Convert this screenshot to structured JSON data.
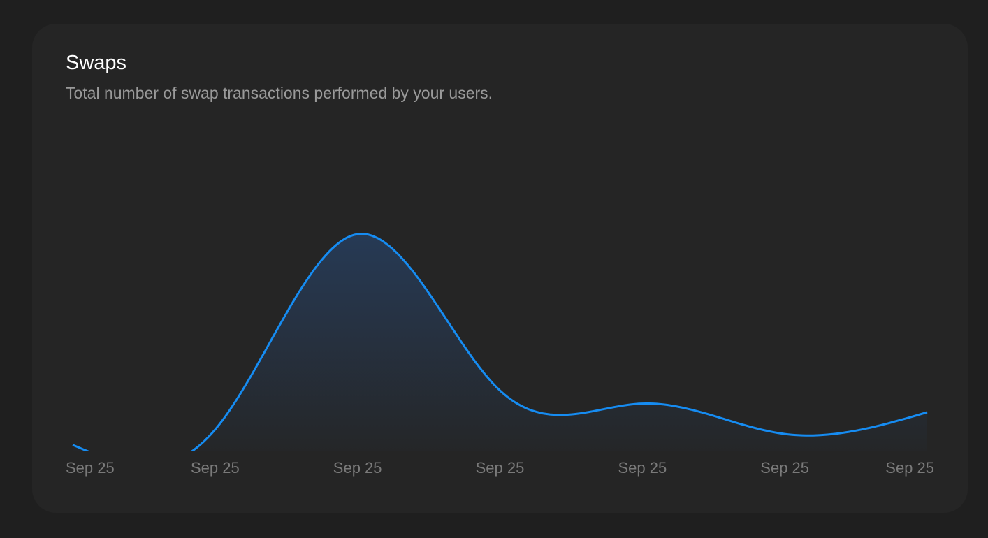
{
  "colors": {
    "line": "#168cf2",
    "fill_top": "#263a55",
    "fill_bottom": "#252525"
  },
  "chart_data": {
    "type": "area",
    "title": "Swaps",
    "subtitle": "Total number of swap transactions performed by your users.",
    "categories": [
      "Sep 25",
      "Sep 25",
      "Sep 25",
      "Sep 25",
      "Sep 25",
      "Sep 25",
      "Sep 25"
    ],
    "series": [
      {
        "name": "Swaps",
        "values": [
          3,
          10,
          100,
          28,
          22,
          8,
          18
        ]
      }
    ],
    "xlabel": "",
    "ylabel": "",
    "ylim": [
      0,
      100
    ],
    "grid": false,
    "legend": "none",
    "interpolation": "natural"
  }
}
